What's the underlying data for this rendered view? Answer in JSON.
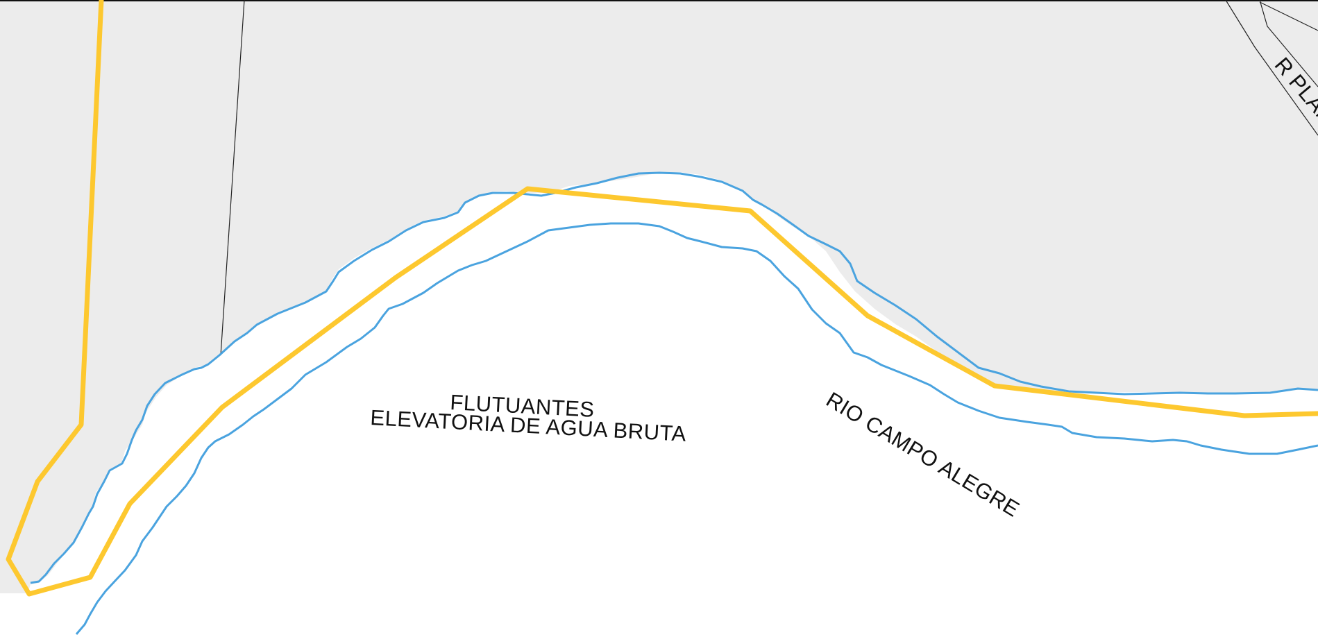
{
  "map": {
    "labels": {
      "floating_station_line1": "FLUTUANTES",
      "floating_station_line2": "ELEVATORIA DE AGUA BRUTA",
      "river": "RIO CAMPO ALEGRE",
      "street": "R PLAN"
    },
    "colors": {
      "land": "#ececec",
      "water": "#ffffff",
      "boundary": "#fdc82f",
      "riverbank": "#4aa3df",
      "parcel_line": "#222222",
      "text": "#111111"
    }
  }
}
